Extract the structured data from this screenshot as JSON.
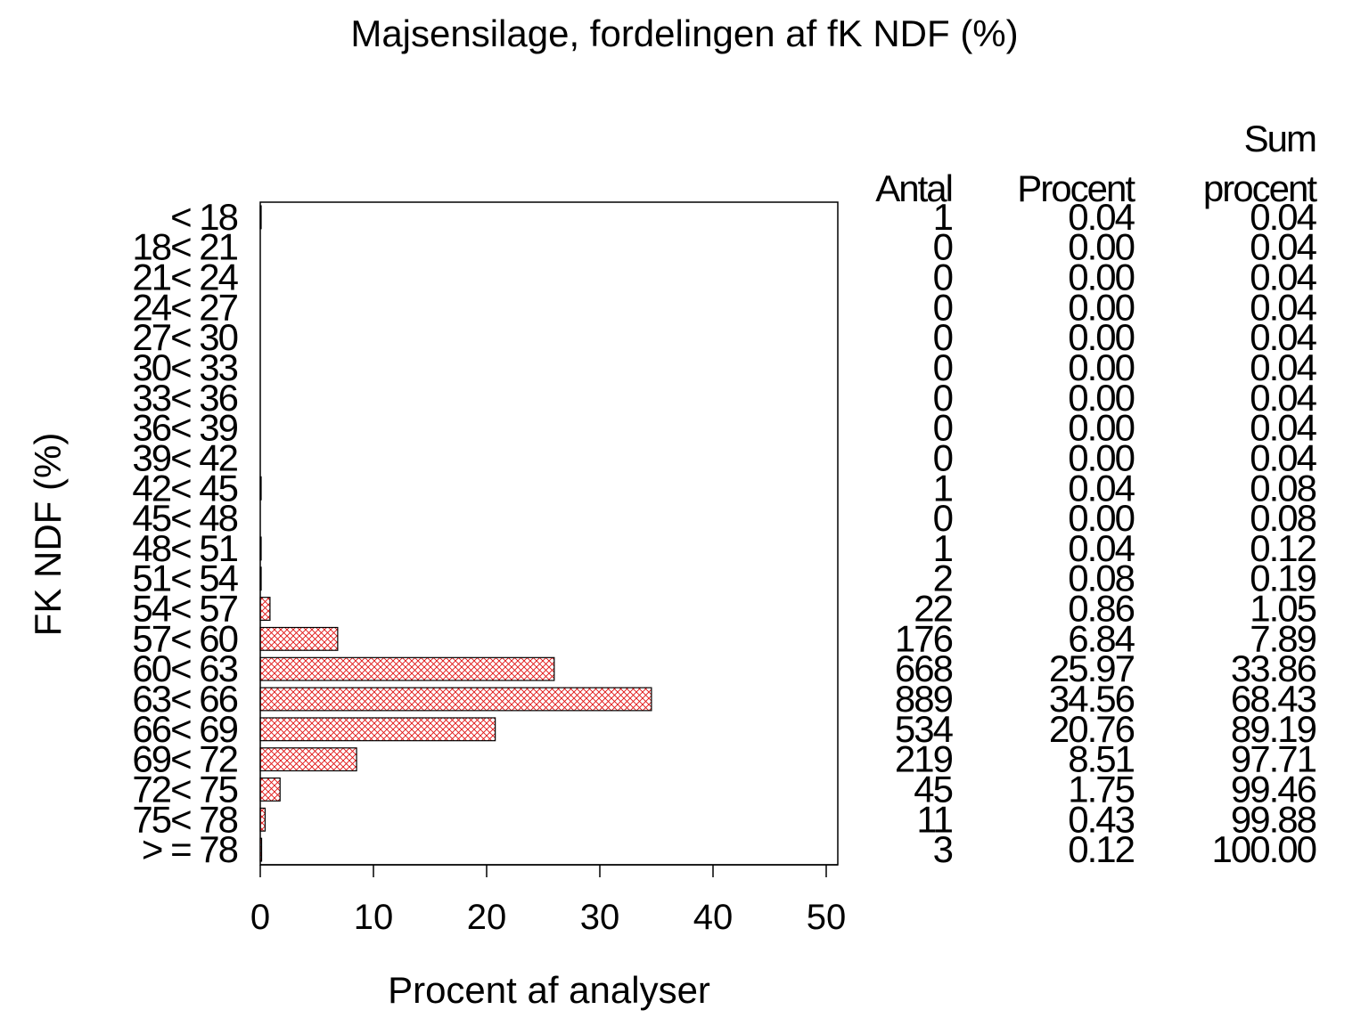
{
  "chart_data": {
    "type": "bar",
    "orientation": "horizontal",
    "title": "Majsensilage, fordelingen af fK NDF (%)",
    "xlabel": "Procent af analyser",
    "ylabel": "FK NDF (%)",
    "xlim": [
      0,
      50
    ],
    "xticks": [
      "0",
      "10",
      "20",
      "30",
      "40",
      "50"
    ],
    "grid": false,
    "fill_pattern": "red crosshatch",
    "colors": {
      "bar_outline": "#000000",
      "hatch": "#e01010"
    },
    "categories": [
      "< 18",
      "18< 21",
      "21< 24",
      "24< 27",
      "27< 30",
      "30< 33",
      "33< 36",
      "36< 39",
      "39< 42",
      "42< 45",
      "45< 48",
      "48< 51",
      "51< 54",
      "54< 57",
      "57< 60",
      "60< 63",
      "63< 66",
      "66< 69",
      "69< 72",
      "72< 75",
      "75< 78",
      "> = 78"
    ],
    "values": [
      0.04,
      0.0,
      0.0,
      0.0,
      0.0,
      0.0,
      0.0,
      0.0,
      0.0,
      0.04,
      0.0,
      0.04,
      0.08,
      0.86,
      6.84,
      25.97,
      34.56,
      20.76,
      8.51,
      1.75,
      0.43,
      0.12
    ],
    "table": {
      "headers": {
        "antal": "Antal",
        "procent": "Procent",
        "sum_line1": "Sum",
        "sum_line2": "procent"
      },
      "antal": [
        "1",
        "0",
        "0",
        "0",
        "0",
        "0",
        "0",
        "0",
        "0",
        "1",
        "0",
        "1",
        "2",
        "22",
        "176",
        "668",
        "889",
        "534",
        "219",
        "45",
        "11",
        "3"
      ],
      "procent": [
        "0.04",
        "0.00",
        "0.00",
        "0.00",
        "0.00",
        "0.00",
        "0.00",
        "0.00",
        "0.00",
        "0.04",
        "0.00",
        "0.04",
        "0.08",
        "0.86",
        "6.84",
        "25.97",
        "34.56",
        "20.76",
        "8.51",
        "1.75",
        "0.43",
        "0.12"
      ],
      "sum_procent": [
        "0.04",
        "0.04",
        "0.04",
        "0.04",
        "0.04",
        "0.04",
        "0.04",
        "0.04",
        "0.04",
        "0.08",
        "0.08",
        "0.12",
        "0.19",
        "1.05",
        "7.89",
        "33.86",
        "68.43",
        "89.19",
        "97.71",
        "99.46",
        "99.88",
        "100.00"
      ]
    }
  }
}
